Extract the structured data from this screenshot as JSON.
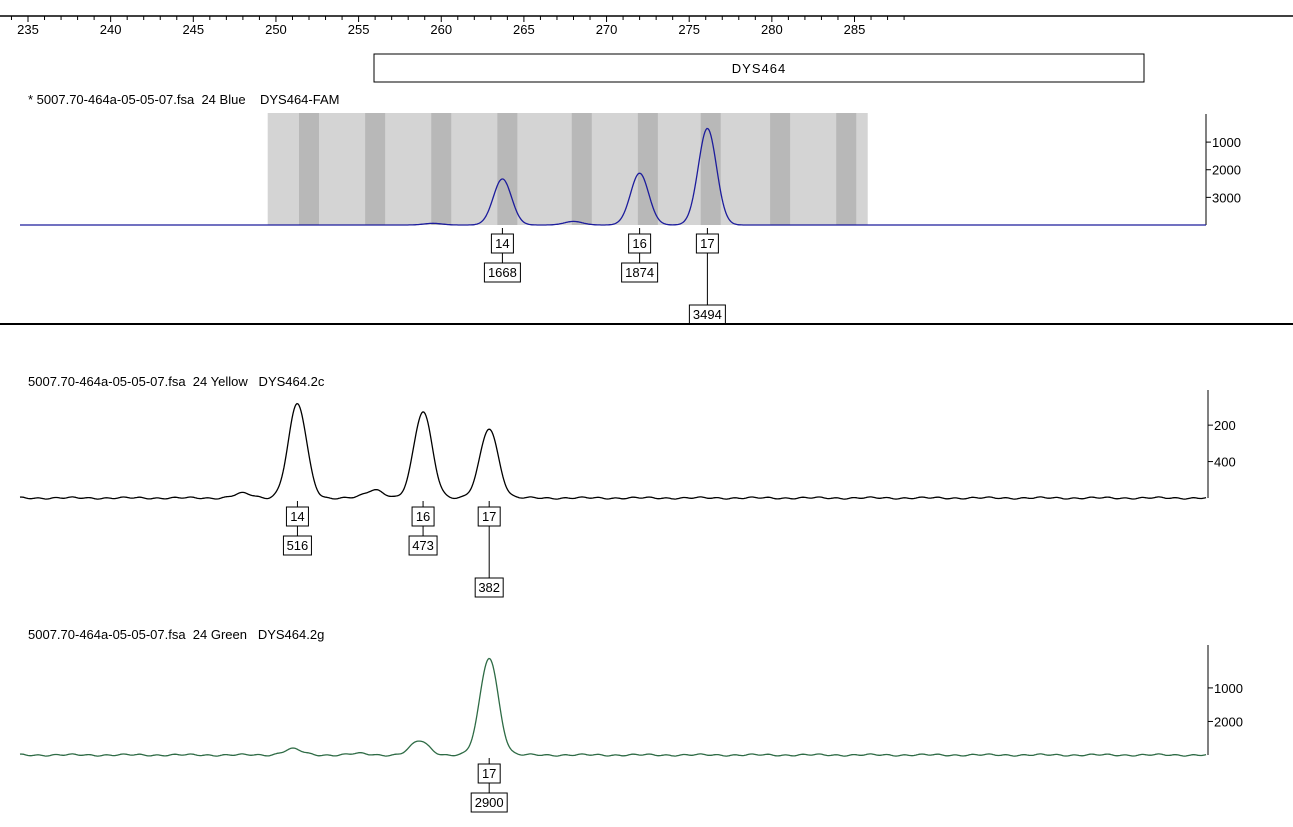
{
  "ruler": {
    "ticks": [
      "235",
      "240",
      "245",
      "250",
      "255",
      "260",
      "265",
      "270",
      "275",
      "280",
      "285"
    ],
    "marker_label": "DYS464"
  },
  "colors": {
    "blue_trace": "#1c1c9c",
    "black_trace": "#000000",
    "green_trace": "#2e6b45",
    "bin_light": "#d4d4d4",
    "bin_dark": "#b8b8b8"
  },
  "panels": [
    {
      "header": "* 5007.70-464a-05-05-07.fsa  24 Blue    DYS464-FAM",
      "y_ticks": [
        "3000",
        "2000",
        "1000"
      ],
      "alleles": [
        {
          "allele": "14",
          "height": "1668"
        },
        {
          "allele": "16",
          "height": "1874"
        },
        {
          "allele": "17",
          "height": "3494"
        }
      ]
    },
    {
      "header": "5007.70-464a-05-05-07.fsa  24 Yellow   DYS464.2c",
      "y_ticks": [
        "400",
        "200"
      ],
      "alleles": [
        {
          "allele": "14",
          "height": "516"
        },
        {
          "allele": "16",
          "height": "473"
        },
        {
          "allele": "17",
          "height": "382"
        }
      ]
    },
    {
      "header": "5007.70-464a-05-05-07.fsa  24 Green   DYS464.2g",
      "y_ticks": [
        "2000",
        "1000"
      ],
      "alleles": [
        {
          "allele": "17",
          "height": "2900"
        }
      ]
    }
  ],
  "chart_data": [
    {
      "type": "line",
      "dye": "Blue",
      "xlim": [
        233,
        292
      ],
      "ylim": [
        0,
        3800
      ],
      "y_ticks": [
        1000,
        2000,
        3000
      ],
      "bin_range": [
        249.5,
        285.8
      ],
      "bins": [
        252,
        256,
        260,
        264,
        268.5,
        272.5,
        276.3,
        280.5,
        284.5
      ],
      "peaks": [
        {
          "allele": "14",
          "size": 263.7,
          "height": 1668
        },
        {
          "allele": "16",
          "size": 272.0,
          "height": 1874
        },
        {
          "allele": "17",
          "size": 276.1,
          "height": 3494
        }
      ],
      "minor_peaks": [
        {
          "size": 259.5,
          "height": 60
        },
        {
          "size": 268.0,
          "height": 130
        }
      ]
    },
    {
      "type": "line",
      "dye": "Yellow",
      "xlim": [
        233,
        292
      ],
      "ylim": [
        0,
        560
      ],
      "y_ticks": [
        200,
        400
      ],
      "peaks": [
        {
          "allele": "14",
          "size": 251.3,
          "height": 516
        },
        {
          "allele": "16",
          "size": 258.9,
          "height": 473
        },
        {
          "allele": "17",
          "size": 262.9,
          "height": 382
        }
      ],
      "minor_peaks": [
        {
          "size": 248.0,
          "height": 25
        },
        {
          "size": 256.0,
          "height": 45
        }
      ]
    },
    {
      "type": "line",
      "dye": "Green",
      "xlim": [
        233,
        292
      ],
      "ylim": [
        0,
        3100
      ],
      "y_ticks": [
        1000,
        2000
      ],
      "peaks": [
        {
          "allele": "17",
          "size": 262.9,
          "height": 2900
        }
      ],
      "minor_peaks": [
        {
          "size": 251.0,
          "height": 180
        },
        {
          "size": 255.0,
          "height": 40
        },
        {
          "size": 258.7,
          "height": 420
        }
      ]
    }
  ]
}
